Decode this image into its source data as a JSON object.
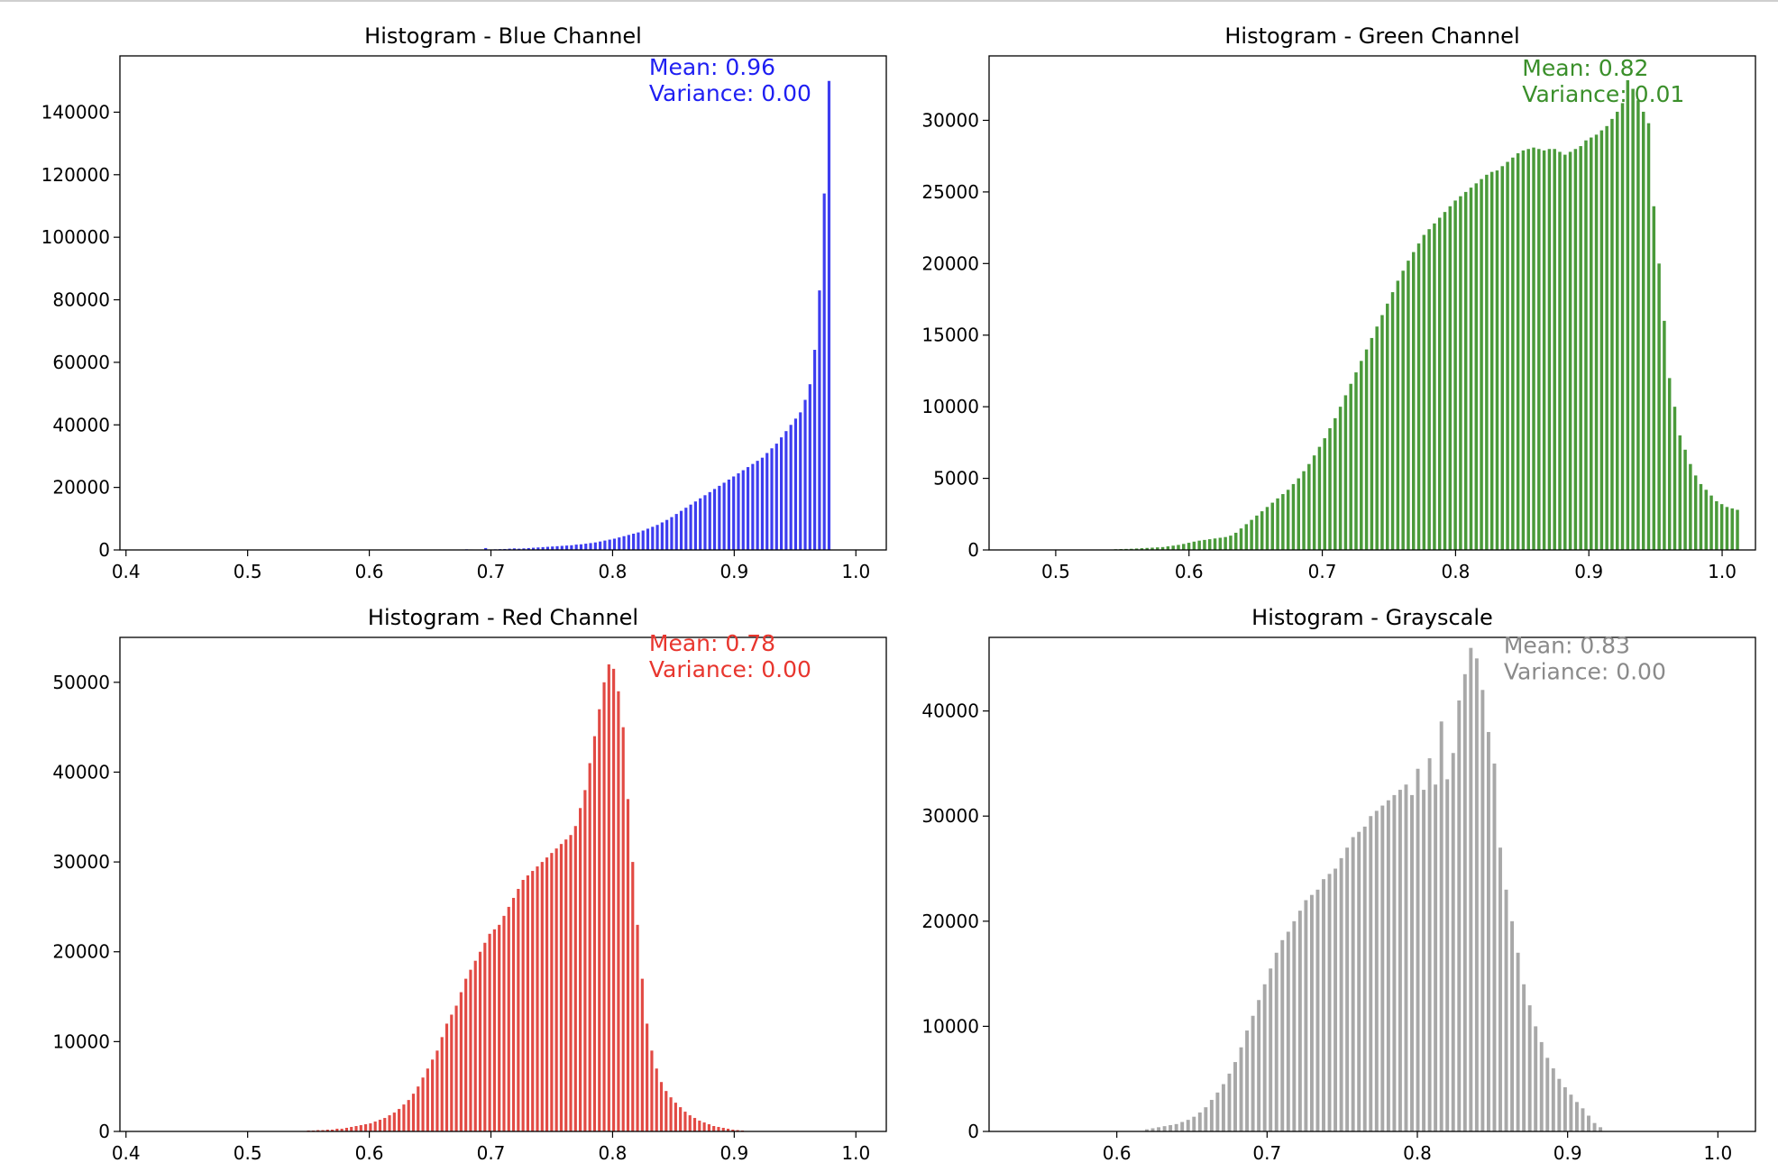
{
  "figure": {
    "colors": {
      "text": "#000000",
      "axes": "#000000",
      "background": "#ffffff"
    }
  },
  "chart_data": [
    {
      "type": "bar",
      "title": "Histogram - Blue Channel",
      "xlabel": "",
      "ylabel": "",
      "color": "#3d3df0",
      "annotation_color": "#1f1ff2",
      "xlim": [
        0.395,
        1.025
      ],
      "ylim": [
        0,
        158000
      ],
      "xticks": [
        0.4,
        0.5,
        0.6,
        0.7,
        0.8,
        0.9,
        1.0
      ],
      "xtick_labels": [
        "0.4",
        "0.5",
        "0.6",
        "0.7",
        "0.8",
        "0.9",
        "1.0"
      ],
      "yticks": [
        0,
        20000,
        40000,
        60000,
        80000,
        100000,
        120000,
        140000
      ],
      "ytick_labels": [
        "0",
        "20000",
        "40000",
        "60000",
        "80000",
        "100000",
        "120000",
        "140000"
      ],
      "annotation": [
        "Mean: 0.96",
        "Variance: 0.00"
      ],
      "annotation_x": 0.83,
      "annotation_y": 152000,
      "bin_start": 0.68,
      "bin_width": 0.00392,
      "values": [
        200,
        150,
        100,
        120,
        600,
        150,
        200,
        250,
        300,
        400,
        500,
        400,
        500,
        600,
        700,
        800,
        900,
        1000,
        1100,
        1200,
        1300,
        1400,
        1500,
        1700,
        1800,
        2000,
        2200,
        2400,
        2700,
        3000,
        3300,
        3600,
        4000,
        4400,
        4800,
        5200,
        5600,
        6200,
        6800,
        7400,
        8000,
        8800,
        9600,
        10500,
        11500,
        12500,
        13500,
        14500,
        15500,
        16500,
        17500,
        18500,
        19500,
        20500,
        21500,
        22500,
        23500,
        24500,
        25500,
        26500,
        27500,
        28500,
        29500,
        31000,
        32500,
        34000,
        36000,
        38000,
        40000,
        42000,
        44000,
        48000,
        53000,
        64000,
        83000,
        114000,
        150000
      ]
    },
    {
      "type": "bar",
      "title": "Histogram - Green Channel",
      "xlabel": "",
      "ylabel": "",
      "color": "#4a9a3a",
      "annotation_color": "#3a8f2a",
      "xlim": [
        0.45,
        1.025
      ],
      "ylim": [
        0,
        34500
      ],
      "xticks": [
        0.5,
        0.6,
        0.7,
        0.8,
        0.9,
        1.0
      ],
      "xtick_labels": [
        "0.5",
        "0.6",
        "0.7",
        "0.8",
        "0.9",
        "1.0"
      ],
      "yticks": [
        0,
        5000,
        10000,
        15000,
        20000,
        25000,
        30000
      ],
      "ytick_labels": [
        "0",
        "5000",
        "10000",
        "15000",
        "20000",
        "25000",
        "30000"
      ],
      "annotation": [
        "Mean: 0.82",
        "Variance: 0.01"
      ],
      "annotation_x": 0.85,
      "annotation_y": 33100,
      "bin_start": 0.545,
      "bin_width": 0.00392,
      "values": [
        50,
        60,
        70,
        80,
        100,
        120,
        140,
        160,
        180,
        200,
        250,
        300,
        350,
        420,
        500,
        580,
        650,
        700,
        750,
        800,
        850,
        900,
        1000,
        1200,
        1500,
        1800,
        2100,
        2400,
        2700,
        3000,
        3300,
        3600,
        3900,
        4200,
        4600,
        5000,
        5500,
        6000,
        6600,
        7200,
        7800,
        8500,
        9200,
        10000,
        10800,
        11600,
        12400,
        13200,
        14000,
        14800,
        15600,
        16400,
        17200,
        18000,
        18800,
        19500,
        20200,
        20800,
        21400,
        22000,
        22400,
        22800,
        23200,
        23600,
        24000,
        24400,
        24700,
        25000,
        25300,
        25600,
        25900,
        26200,
        26400,
        26500,
        26800,
        27100,
        27400,
        27700,
        27900,
        28000,
        28100,
        28000,
        27900,
        28000,
        28000,
        27800,
        27600,
        27800,
        28000,
        28200,
        28600,
        28800,
        29000,
        29300,
        29600,
        30100,
        30600,
        31200,
        32800,
        32200,
        31400,
        30600,
        29800,
        24000,
        20000,
        16000,
        12000,
        10000,
        8000,
        7000,
        6000,
        5200,
        4600,
        4200,
        3800,
        3400,
        3200,
        3000,
        2900,
        2800
      ]
    },
    {
      "type": "bar",
      "title": "Histogram - Red Channel",
      "xlabel": "",
      "ylabel": "",
      "color": "#e24a44",
      "annotation_color": "#e8362e",
      "xlim": [
        0.395,
        1.025
      ],
      "ylim": [
        0,
        55000
      ],
      "xticks": [
        0.4,
        0.5,
        0.6,
        0.7,
        0.8,
        0.9,
        1.0
      ],
      "xtick_labels": [
        "0.4",
        "0.5",
        "0.6",
        "0.7",
        "0.8",
        "0.9",
        "1.0"
      ],
      "yticks": [
        0,
        10000,
        20000,
        30000,
        40000,
        50000
      ],
      "ytick_labels": [
        "0",
        "10000",
        "20000",
        "30000",
        "40000",
        "50000"
      ],
      "annotation": [
        "Mean: 0.78",
        "Variance: 0.00"
      ],
      "annotation_x": 0.83,
      "annotation_y": 53500,
      "bin_start": 0.55,
      "bin_width": 0.00392,
      "values": [
        100,
        100,
        150,
        150,
        200,
        200,
        300,
        300,
        400,
        500,
        600,
        700,
        800,
        900,
        1100,
        1300,
        1500,
        1800,
        2100,
        2500,
        3000,
        3500,
        4200,
        5000,
        6000,
        7000,
        8000,
        9000,
        10500,
        12000,
        13000,
        14000,
        15500,
        17000,
        18000,
        19000,
        20000,
        21000,
        22000,
        22500,
        23000,
        24000,
        25000,
        26000,
        27000,
        28000,
        28500,
        29000,
        29500,
        30000,
        30500,
        31000,
        31500,
        32000,
        32500,
        33000,
        34000,
        36000,
        38000,
        41000,
        44000,
        47000,
        50000,
        52000,
        51500,
        49000,
        45000,
        37000,
        30000,
        23000,
        17000,
        12000,
        9000,
        7000,
        5500,
        4500,
        3800,
        3200,
        2700,
        2200,
        1800,
        1500,
        1200,
        1000,
        800,
        600,
        500,
        400,
        300,
        200,
        150,
        100
      ]
    },
    {
      "type": "bar",
      "title": "Histogram - Grayscale",
      "xlabel": "",
      "ylabel": "",
      "color": "#a8a8a8",
      "annotation_color": "#8a8a8a",
      "xlim": [
        0.515,
        1.025
      ],
      "ylim": [
        0,
        47000
      ],
      "xticks": [
        0.6,
        0.7,
        0.8,
        0.9,
        1.0
      ],
      "xtick_labels": [
        "0.6",
        "0.7",
        "0.8",
        "0.9",
        "1.0"
      ],
      "yticks": [
        0,
        10000,
        20000,
        30000,
        40000
      ],
      "ytick_labels": [
        "0",
        "10000",
        "20000",
        "30000",
        "40000"
      ],
      "annotation": [
        "Mean: 0.83",
        "Variance: 0.00"
      ],
      "annotation_x": 0.8575,
      "annotation_y": 45500,
      "bin_start": 0.62,
      "bin_width": 0.00392,
      "values": [
        200,
        300,
        400,
        500,
        600,
        700,
        900,
        1100,
        1400,
        1800,
        2300,
        3000,
        3700,
        4500,
        5500,
        6600,
        8000,
        9600,
        11000,
        12500,
        14000,
        15500,
        17000,
        18200,
        19000,
        20000,
        21000,
        22000,
        22500,
        23000,
        24000,
        24500,
        25000,
        26000,
        27000,
        28000,
        28500,
        29000,
        30000,
        30500,
        31000,
        31500,
        32000,
        32500,
        33000,
        32000,
        34500,
        32500,
        35500,
        33000,
        39000,
        33500,
        36000,
        41000,
        43500,
        46000,
        45000,
        42000,
        38000,
        35000,
        27000,
        23000,
        20000,
        17000,
        14000,
        12000,
        10000,
        8500,
        7000,
        6000,
        5000,
        4200,
        3500,
        2800,
        2200,
        1500,
        800,
        400
      ]
    }
  ]
}
